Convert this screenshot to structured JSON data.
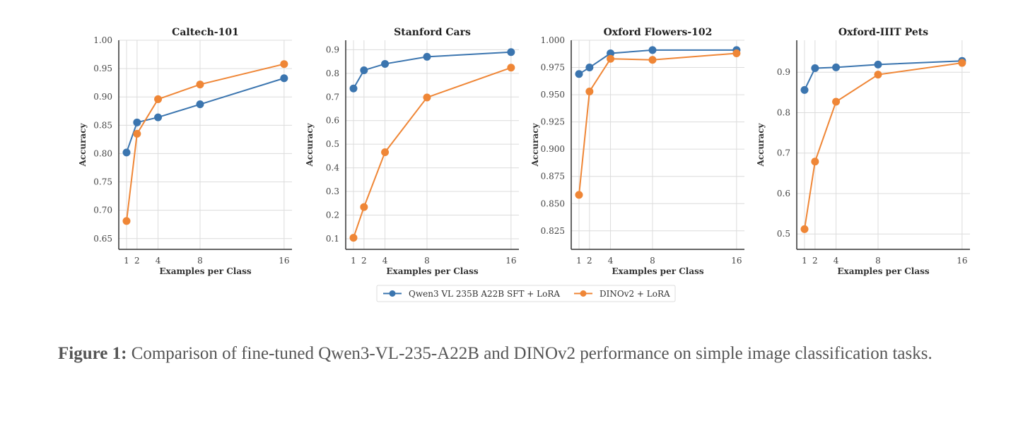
{
  "chart_data": [
    {
      "type": "line",
      "title": "Caltech-101",
      "xlabel": "Examples per Class",
      "ylabel": "Accuracy",
      "x": [
        1,
        2,
        4,
        8,
        16
      ],
      "xticks": [
        "1",
        "2",
        "4",
        "8",
        "16"
      ],
      "yticks": [
        "0.65",
        "0.70",
        "0.75",
        "0.80",
        "0.85",
        "0.90",
        "0.95",
        "1.00"
      ],
      "ylim": [
        0.631,
        1.0
      ],
      "grid": true,
      "series": [
        {
          "name": "Qwen3 VL 235B A22B SFT + LoRA",
          "values": [
            0.802,
            0.855,
            0.864,
            0.887,
            0.933
          ]
        },
        {
          "name": "DINOv2 + LoRA",
          "values": [
            0.681,
            0.835,
            0.896,
            0.922,
            0.958
          ]
        }
      ]
    },
    {
      "type": "line",
      "title": "Stanford Cars",
      "xlabel": "Examples per Class",
      "ylabel": "Accuracy",
      "x": [
        1,
        2,
        4,
        8,
        16
      ],
      "xticks": [
        "1",
        "2",
        "4",
        "8",
        "16"
      ],
      "yticks": [
        "0.1",
        "0.2",
        "0.3",
        "0.4",
        "0.5",
        "0.6",
        "0.7",
        "0.8",
        "0.9"
      ],
      "ylim": [
        0.055,
        0.94
      ],
      "grid": true,
      "series": [
        {
          "name": "Qwen3 VL 235B A22B SFT + LoRA",
          "values": [
            0.736,
            0.813,
            0.84,
            0.87,
            0.89
          ]
        },
        {
          "name": "DINOv2 + LoRA",
          "values": [
            0.104,
            0.234,
            0.466,
            0.698,
            0.824
          ]
        }
      ]
    },
    {
      "type": "line",
      "title": "Oxford Flowers-102",
      "xlabel": "Examples per Class",
      "ylabel": "Accuracy",
      "x": [
        1,
        2,
        4,
        8,
        16
      ],
      "xticks": [
        "1",
        "2",
        "4",
        "8",
        "16"
      ],
      "yticks": [
        "0.825",
        "0.850",
        "0.875",
        "0.900",
        "0.925",
        "0.950",
        "0.975",
        "1.000"
      ],
      "ylim": [
        0.808,
        1.0
      ],
      "grid": true,
      "series": [
        {
          "name": "Qwen3 VL 235B A22B SFT + LoRA",
          "values": [
            0.969,
            0.975,
            0.988,
            0.991,
            0.991
          ]
        },
        {
          "name": "DINOv2 + LoRA",
          "values": [
            0.858,
            0.953,
            0.983,
            0.982,
            0.988
          ]
        }
      ]
    },
    {
      "type": "line",
      "title": "Oxford-IIIT Pets",
      "xlabel": "Examples per Class",
      "ylabel": "Accuracy",
      "x": [
        1,
        2,
        4,
        8,
        16
      ],
      "xticks": [
        "1",
        "2",
        "4",
        "8",
        "16"
      ],
      "yticks": [
        "0.5",
        "0.6",
        "0.7",
        "0.8",
        "0.9"
      ],
      "ylim": [
        0.462,
        0.979
      ],
      "grid": true,
      "series": [
        {
          "name": "Qwen3 VL 235B A22B SFT + LoRA",
          "values": [
            0.856,
            0.91,
            0.912,
            0.919,
            0.928
          ]
        },
        {
          "name": "DINOv2 + LoRA",
          "values": [
            0.512,
            0.679,
            0.827,
            0.894,
            0.923
          ]
        }
      ]
    }
  ],
  "legend": {
    "placement": "bottom-center",
    "entries": [
      "Qwen3 VL 235B A22B SFT + LoRA",
      "DINOv2 + LoRA"
    ]
  },
  "colors": {
    "series": [
      "#3b75af",
      "#ef8636"
    ],
    "grid": "#dcdcdc",
    "axis": "#333333"
  },
  "caption": {
    "label": "Figure 1:",
    "text": " Comparison of fine-tuned Qwen3-VL-235-A22B and DINOv2 performance on simple image classification tasks."
  }
}
